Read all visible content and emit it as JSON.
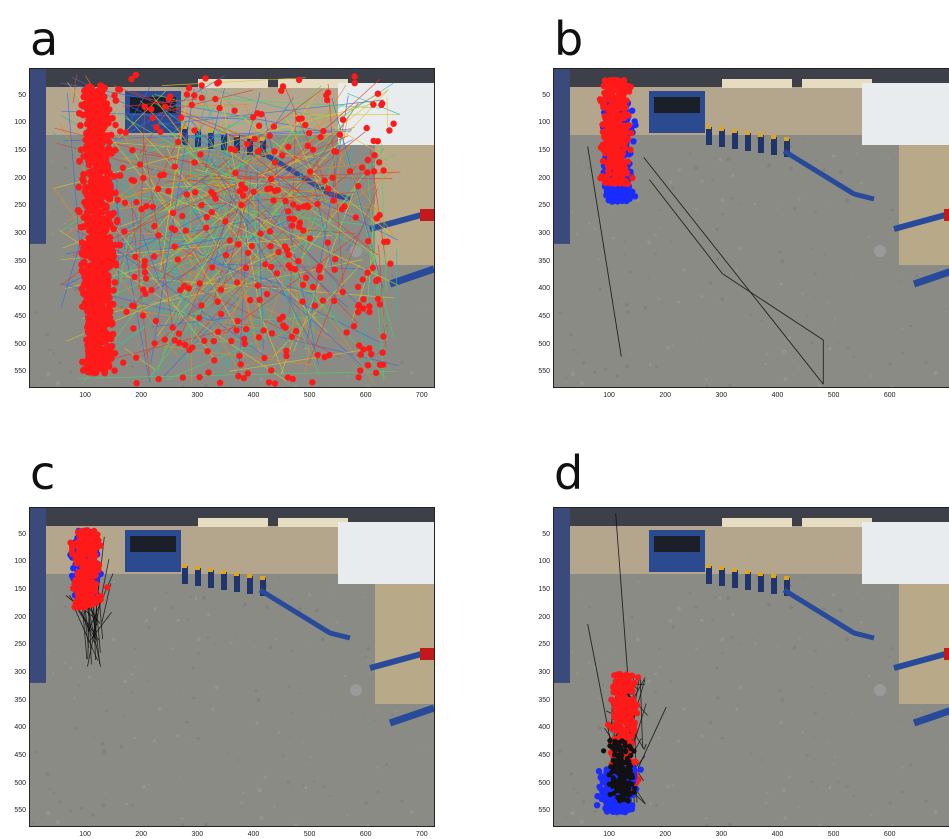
{
  "figure": {
    "panels": [
      {
        "id": "a",
        "label": "a"
      },
      {
        "id": "b",
        "label": "b"
      },
      {
        "id": "c",
        "label": "c"
      },
      {
        "id": "d",
        "label": "d"
      }
    ],
    "y_ticks": [
      "50",
      "100",
      "150",
      "200",
      "250",
      "300",
      "350",
      "400",
      "450",
      "500",
      "550"
    ],
    "x_ticks": [
      "100",
      "200",
      "300",
      "400",
      "500",
      "600",
      "700"
    ],
    "colors": {
      "point_primary": "#ff1a1a",
      "point_secondary": "#1a2cff",
      "trajectory_line": "#111111"
    }
  }
}
